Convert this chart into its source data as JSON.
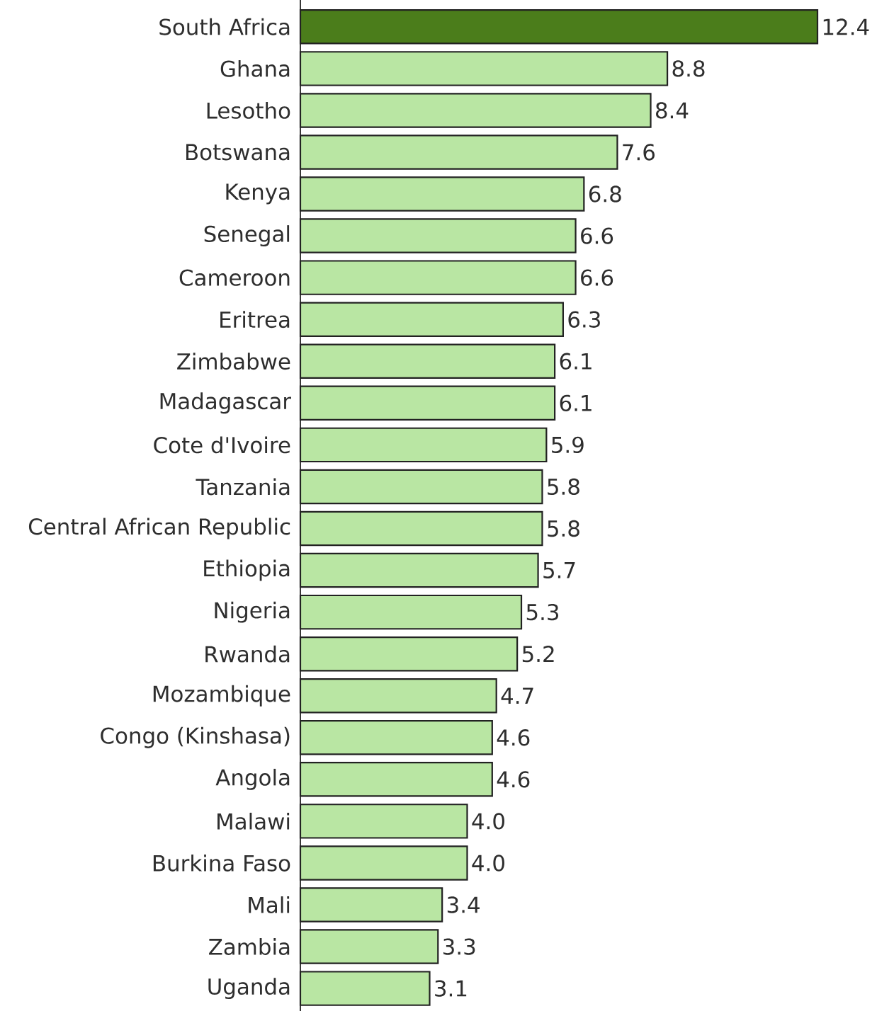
{
  "chart_data": {
    "type": "bar",
    "orientation": "horizontal",
    "categories": [
      "South Africa",
      "Ghana",
      "Lesotho",
      "Botswana",
      "Kenya",
      "Senegal",
      "Cameroon",
      "Eritrea",
      "Zimbabwe",
      "Madagascar",
      "Cote d'Ivoire",
      "Tanzania",
      "Central African Republic",
      "Ethiopia",
      "Nigeria",
      "Rwanda",
      "Mozambique",
      "Congo (Kinshasa)",
      "Angola",
      "Malawi",
      "Burkina Faso",
      "Mali",
      "Zambia",
      "Uganda"
    ],
    "values": [
      12.4,
      8.8,
      8.4,
      7.6,
      6.8,
      6.6,
      6.6,
      6.3,
      6.1,
      6.1,
      5.9,
      5.8,
      5.8,
      5.7,
      5.3,
      5.2,
      4.7,
      4.6,
      4.6,
      4.0,
      4.0,
      3.4,
      3.3,
      3.1
    ],
    "value_labels": [
      "12.4",
      "8.8",
      "8.4",
      "7.6",
      "6.8",
      "6.6",
      "6.6",
      "6.3",
      "6.1",
      "6.1",
      "5.9",
      "5.8",
      "5.8",
      "5.7",
      "5.3",
      "5.2",
      "4.7",
      "4.6",
      "4.6",
      "4.0",
      "4.0",
      "3.4",
      "3.3",
      "3.1"
    ],
    "colors": [
      "#4b7d1b",
      "#b9e6a3",
      "#b9e6a3",
      "#b9e6a3",
      "#b9e6a3",
      "#b9e6a3",
      "#b9e6a3",
      "#b9e6a3",
      "#b9e6a3",
      "#b9e6a3",
      "#b9e6a3",
      "#b9e6a3",
      "#b9e6a3",
      "#b9e6a3",
      "#b9e6a3",
      "#b9e6a3",
      "#b9e6a3",
      "#b9e6a3",
      "#b9e6a3",
      "#b9e6a3",
      "#b9e6a3",
      "#b9e6a3",
      "#b9e6a3",
      "#b9e6a3"
    ],
    "tick_labels": "y"
  }
}
